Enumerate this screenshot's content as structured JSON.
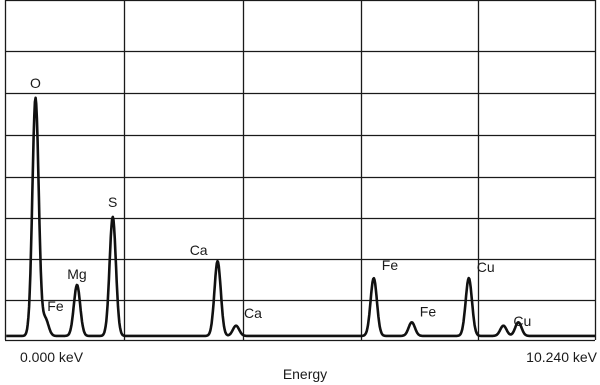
{
  "chart_data": {
    "type": "line",
    "title": "",
    "xlabel": "Energy",
    "ylabel": "",
    "xlim": [
      0,
      10.24
    ],
    "ylim": [
      0,
      100
    ],
    "grid": true,
    "x_tick_labels": [
      "0.000 keV",
      "10.240 keV"
    ],
    "series": [
      {
        "peaks": [
          {
            "label": "O",
            "x": 0.53,
            "height": 70
          },
          {
            "label": "Fe",
            "x": 0.7,
            "height": 5
          },
          {
            "label": "Mg",
            "x": 1.25,
            "height": 15
          },
          {
            "label": "S",
            "x": 1.87,
            "height": 35
          },
          {
            "label": "Ca",
            "x": 3.69,
            "height": 22
          },
          {
            "label": "Ca",
            "x": 4.01,
            "height": 3
          },
          {
            "label": "Fe",
            "x": 6.4,
            "height": 17
          },
          {
            "label": "Fe",
            "x": 7.06,
            "height": 4
          },
          {
            "label": "Cu",
            "x": 8.05,
            "height": 17
          },
          {
            "label": "Cu",
            "x": 8.65,
            "height": 3
          },
          {
            "label": "",
            "x": 8.91,
            "height": 4
          }
        ]
      }
    ]
  },
  "colors": {
    "background": "#ffffff",
    "grid": "#1a1a1a",
    "trace": "#111111",
    "text": "#1a1a1a"
  }
}
